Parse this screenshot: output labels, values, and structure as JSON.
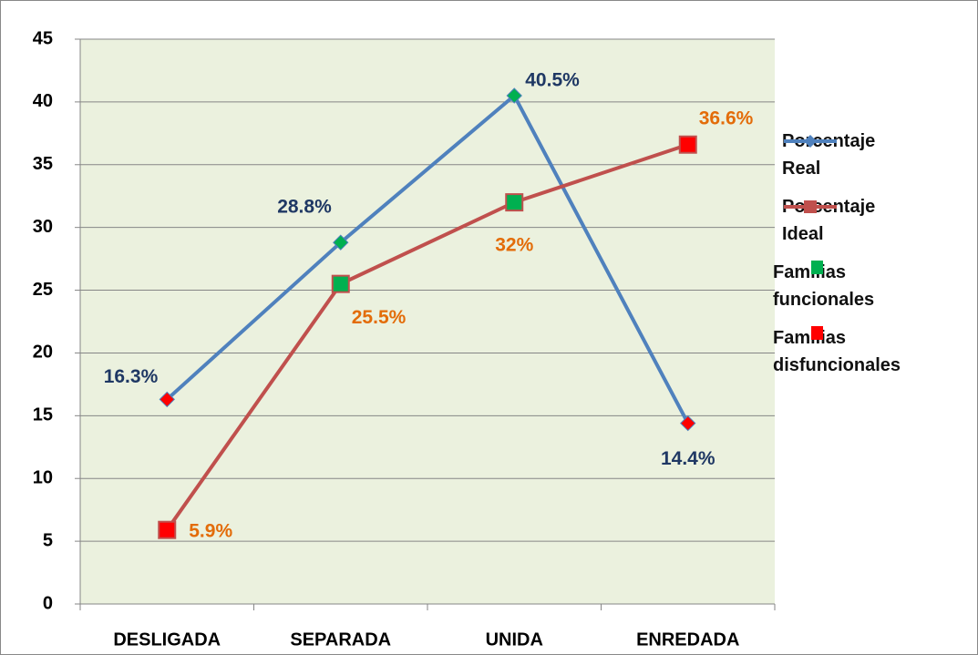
{
  "chart_data": {
    "type": "line",
    "categories": [
      "DESLIGADA",
      "SEPARADA",
      "UNIDA",
      "ENREDADA"
    ],
    "series": [
      {
        "name": "Porcentaje Real",
        "color": "#4f81bd",
        "marker": "diamond",
        "values": [
          16.3,
          28.8,
          40.5,
          14.4
        ],
        "value_labels": [
          "16.3%",
          "28.8%",
          "40.5%",
          "14.4%"
        ],
        "label_color": "#1f3864",
        "marker_colors": [
          "#ff0000",
          "#00b050",
          "#00b050",
          "#ff0000"
        ]
      },
      {
        "name": "Porcentaje Ideal",
        "color": "#c0504d",
        "marker": "square",
        "values": [
          5.9,
          25.5,
          32,
          36.6
        ],
        "value_labels": [
          "5.9%",
          "25.5%",
          "32%",
          "36.6%"
        ],
        "label_color": "#e36c09",
        "marker_colors": [
          "#ff0000",
          "#00b050",
          "#00b050",
          "#ff0000"
        ]
      }
    ],
    "marker_legend": [
      {
        "name": "Familias funcionales",
        "color": "#00b050"
      },
      {
        "name": "Familias disfuncionales",
        "color": "#ff0000"
      }
    ],
    "ylim": [
      0,
      45
    ],
    "yticks": [
      0,
      5,
      10,
      15,
      20,
      25,
      30,
      35,
      40,
      45
    ],
    "grid": true,
    "legend": "right"
  }
}
